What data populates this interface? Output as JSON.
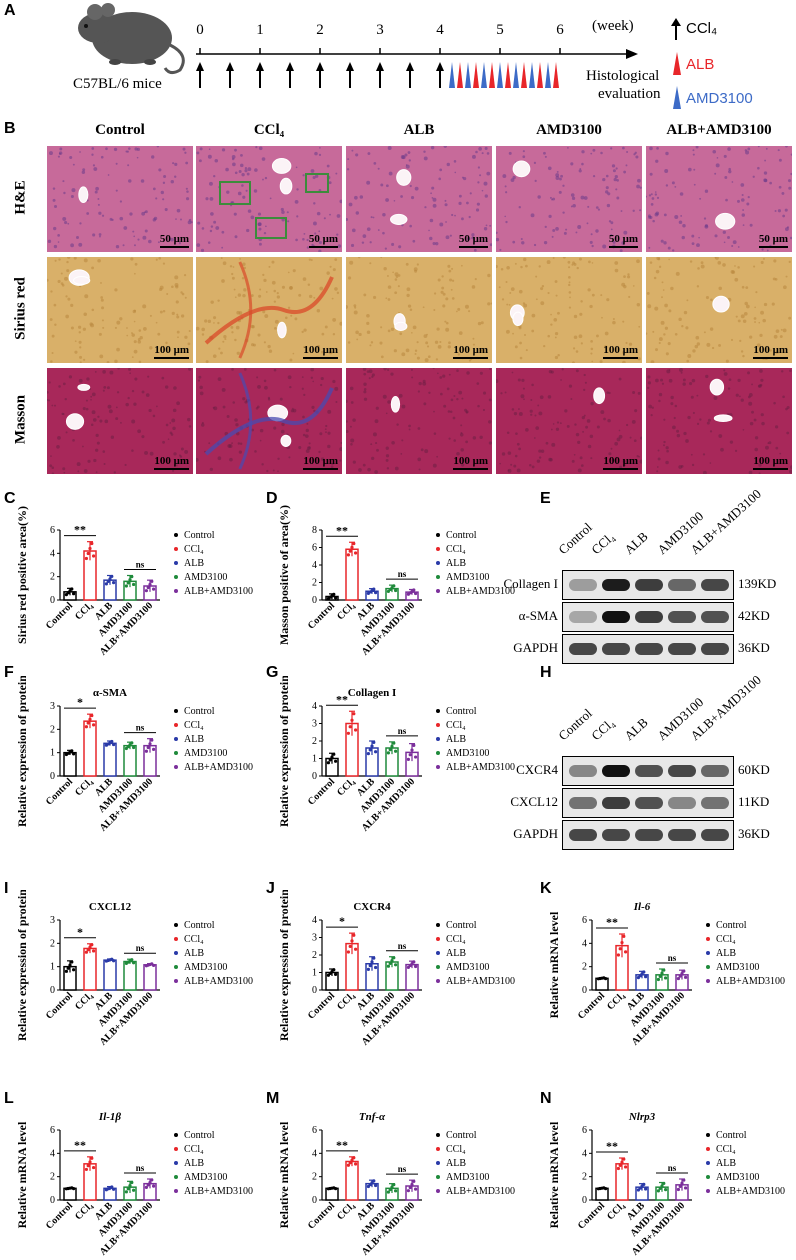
{
  "panels": {
    "A": "A",
    "B": "B",
    "C": "C",
    "D": "D",
    "E": "E",
    "F": "F",
    "G": "G",
    "H": "H",
    "I": "I",
    "J": "J",
    "K": "K",
    "L": "L",
    "M": "M",
    "N": "N"
  },
  "colors": {
    "control": "#000000",
    "ccl4": "#e8262a",
    "alb": "#2a3aa8",
    "amd3100": "#1f8a3b",
    "alb_amd3100": "#7b2f9b",
    "he": "#c76a9a",
    "sirius": "#d9b069",
    "masson": "#a8285a"
  },
  "timeline": {
    "mouse_label": "C57BL/6 mice",
    "weeks": [
      "0",
      "1",
      "2",
      "3",
      "4",
      "5",
      "6"
    ],
    "unit": "(week)",
    "end_label_1": "Histological",
    "end_label_2": "evaluation",
    "legend": {
      "ccl4": "CCl₄",
      "alb": "ALB",
      "amd": "AMD3100"
    }
  },
  "histology": {
    "groups": [
      "Control",
      "CCl₄",
      "ALB",
      "AMD3100",
      "ALB+AMD3100"
    ],
    "rows": [
      "H&E",
      "Sirius red",
      "Masson"
    ],
    "scales": [
      "50 μm",
      "100 μm",
      "100 μm"
    ]
  },
  "legend_items": [
    "Control",
    "CCl₄",
    "ALB",
    "AMD3100",
    "ALB+AMD3100"
  ],
  "western": {
    "E": {
      "lanes": [
        "Control",
        "CCl₄",
        "ALB",
        "AMD3100",
        "ALB+AMD3100"
      ],
      "bands": [
        "Collagen I",
        "α-SMA",
        "GAPDH"
      ],
      "sizes": [
        "139KD",
        "42KD",
        "36KD"
      ]
    },
    "H": {
      "lanes": [
        "Control",
        "CCl₄",
        "ALB",
        "AMD3100",
        "ALB+AMD3100"
      ],
      "bands": [
        "CXCR4",
        "CXCL12",
        "GAPDH"
      ],
      "sizes": [
        "60KD",
        "11KD",
        "36KD"
      ]
    }
  },
  "chart_data": [
    {
      "id": "C",
      "type": "bar",
      "title": "",
      "ylabel": "Sirius red positive area(%)",
      "ylim": [
        0,
        6
      ],
      "yticks": [
        0,
        2,
        4,
        6
      ],
      "categories": [
        "Control",
        "CCl₄",
        "ALB",
        "AMD3100",
        "ALB+AMD3100"
      ],
      "values": [
        0.7,
        4.2,
        1.7,
        1.6,
        1.2
      ],
      "errors": [
        0.3,
        0.8,
        0.4,
        0.5,
        0.5
      ],
      "sig": [
        {
          "from": 0,
          "to": 1,
          "text": "**"
        },
        {
          "from": 3,
          "to": 4,
          "text": "ns"
        }
      ]
    },
    {
      "id": "D",
      "type": "bar",
      "title": "",
      "ylabel": "Masson positive of area(%)",
      "ylim": [
        0,
        8
      ],
      "yticks": [
        0,
        2,
        4,
        6,
        8
      ],
      "categories": [
        "Control",
        "CCl₄",
        "ALB",
        "AMD3100",
        "ALB+AMD3100"
      ],
      "values": [
        0.4,
        5.8,
        1.0,
        1.3,
        0.9
      ],
      "errors": [
        0.3,
        0.8,
        0.3,
        0.4,
        0.3
      ],
      "sig": [
        {
          "from": 0,
          "to": 1,
          "text": "**"
        },
        {
          "from": 3,
          "to": 4,
          "text": "ns"
        }
      ]
    },
    {
      "id": "F",
      "type": "bar",
      "title": "α-SMA",
      "ylabel": "Relative expression of protein",
      "ylim": [
        0,
        3
      ],
      "yticks": [
        0,
        1,
        2,
        3
      ],
      "categories": [
        "Control",
        "CCl₄",
        "ALB",
        "AMD3100",
        "ALB+AMD3100"
      ],
      "values": [
        1.0,
        2.35,
        1.4,
        1.3,
        1.3
      ],
      "errors": [
        0.1,
        0.3,
        0.1,
        0.15,
        0.3
      ],
      "sig": [
        {
          "from": 0,
          "to": 1,
          "text": "*"
        },
        {
          "from": 3,
          "to": 4,
          "text": "ns"
        }
      ]
    },
    {
      "id": "G",
      "type": "bar",
      "title": "Collagen I",
      "ylabel": "Relative expression of protein",
      "ylim": [
        0,
        4
      ],
      "yticks": [
        0,
        1,
        2,
        3,
        4
      ],
      "categories": [
        "Control",
        "CCl₄",
        "ALB",
        "AMD3100",
        "ALB+AMD3100"
      ],
      "values": [
        1.0,
        3.0,
        1.6,
        1.6,
        1.35
      ],
      "errors": [
        0.3,
        0.7,
        0.4,
        0.35,
        0.5
      ],
      "sig": [
        {
          "from": 0,
          "to": 1,
          "text": "**"
        },
        {
          "from": 3,
          "to": 4,
          "text": "ns"
        }
      ]
    },
    {
      "id": "I",
      "type": "bar",
      "title": "CXCL12",
      "ylabel": "Relative expression of protein",
      "ylim": [
        0,
        3
      ],
      "yticks": [
        0,
        1,
        2,
        3
      ],
      "categories": [
        "Control",
        "CCl₄",
        "ALB",
        "AMD3100",
        "ALB+AMD3100"
      ],
      "values": [
        1.0,
        1.78,
        1.28,
        1.22,
        1.08
      ],
      "errors": [
        0.25,
        0.2,
        0.05,
        0.1,
        0.05
      ],
      "sig": [
        {
          "from": 0,
          "to": 1,
          "text": "*"
        },
        {
          "from": 3,
          "to": 4,
          "text": "ns"
        }
      ]
    },
    {
      "id": "J",
      "type": "bar",
      "title": "CXCR4",
      "ylabel": "Relative expression of protein",
      "ylim": [
        0,
        4
      ],
      "yticks": [
        0,
        1,
        2,
        3,
        4
      ],
      "categories": [
        "Control",
        "CCl₄",
        "ALB",
        "AMD3100",
        "ALB+AMD3100"
      ],
      "values": [
        1.0,
        2.65,
        1.5,
        1.6,
        1.45
      ],
      "errors": [
        0.2,
        0.6,
        0.4,
        0.3,
        0.2
      ],
      "sig": [
        {
          "from": 0,
          "to": 1,
          "text": "*"
        },
        {
          "from": 3,
          "to": 4,
          "text": "ns"
        }
      ]
    },
    {
      "id": "K",
      "type": "bar",
      "title": "Il-6",
      "ylabel": "Relative mRNA level",
      "ylim": [
        0,
        6
      ],
      "yticks": [
        0,
        2,
        4,
        6
      ],
      "categories": [
        "Control",
        "CCl₄",
        "ALB",
        "AMD3100",
        "ALB+AMD3100"
      ],
      "values": [
        1.0,
        3.8,
        1.3,
        1.3,
        1.3
      ],
      "errors": [
        0.05,
        1.0,
        0.3,
        0.5,
        0.4
      ],
      "sig": [
        {
          "from": 0,
          "to": 1,
          "text": "**"
        },
        {
          "from": 3,
          "to": 4,
          "text": "ns"
        }
      ]
    },
    {
      "id": "L",
      "type": "bar",
      "title": "Il-1β",
      "ylabel": "Relative mRNA level",
      "ylim": [
        0,
        6
      ],
      "yticks": [
        0,
        2,
        4,
        6
      ],
      "categories": [
        "Control",
        "CCl₄",
        "ALB",
        "AMD3100",
        "ALB+AMD3100"
      ],
      "values": [
        1.0,
        3.1,
        1.0,
        1.1,
        1.4
      ],
      "errors": [
        0.05,
        0.6,
        0.15,
        0.5,
        0.4
      ],
      "sig": [
        {
          "from": 0,
          "to": 1,
          "text": "**"
        },
        {
          "from": 3,
          "to": 4,
          "text": "ns"
        }
      ]
    },
    {
      "id": "M",
      "type": "bar",
      "title": "Tnf-α",
      "ylabel": "Relative mRNA level",
      "ylim": [
        0,
        6
      ],
      "yticks": [
        0,
        2,
        4,
        6
      ],
      "categories": [
        "Control",
        "CCl₄",
        "ALB",
        "AMD3100",
        "ALB+AMD3100"
      ],
      "values": [
        1.0,
        3.3,
        1.4,
        1.0,
        1.2
      ],
      "errors": [
        0.05,
        0.4,
        0.3,
        0.4,
        0.5
      ],
      "sig": [
        {
          "from": 0,
          "to": 1,
          "text": "**"
        },
        {
          "from": 3,
          "to": 4,
          "text": "ns"
        }
      ]
    },
    {
      "id": "N",
      "type": "bar",
      "title": "Nlrp3",
      "ylabel": "Relative mRNA level",
      "ylim": [
        0,
        6
      ],
      "yticks": [
        0,
        2,
        4,
        6
      ],
      "categories": [
        "Control",
        "CCl₄",
        "ALB",
        "AMD3100",
        "ALB+AMD3100"
      ],
      "values": [
        1.0,
        3.1,
        1.1,
        1.1,
        1.3
      ],
      "errors": [
        0.05,
        0.5,
        0.3,
        0.4,
        0.5
      ],
      "sig": [
        {
          "from": 0,
          "to": 1,
          "text": "**"
        },
        {
          "from": 3,
          "to": 4,
          "text": "ns"
        }
      ]
    }
  ]
}
